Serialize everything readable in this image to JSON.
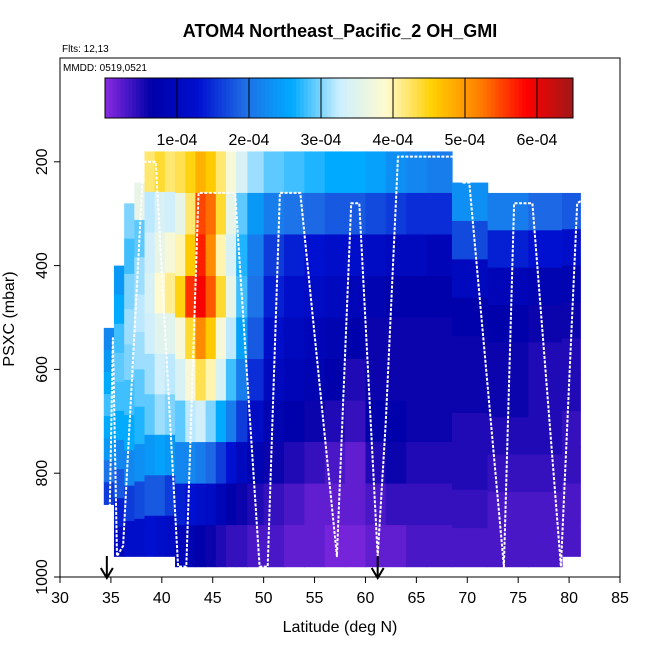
{
  "chart_data": {
    "type": "heatmap",
    "title": "ATOM4 Northeast_Pacific_2 OH_GMI",
    "notes": [
      "Flts: 12,13",
      "MMDD: 0519,0521"
    ],
    "xlabel": "Latitude (deg N)",
    "ylabel": "PSXC (mbar)",
    "xlim": [
      30,
      85
    ],
    "ylim": [
      1000,
      0
    ],
    "x_ticks": [
      30,
      35,
      40,
      45,
      50,
      55,
      60,
      65,
      70,
      75,
      80,
      85
    ],
    "y_ticks": [
      200,
      400,
      600,
      800,
      1000
    ],
    "colorbar": {
      "range": [
        0,
        0.00065
      ],
      "tick_values": [
        0.0001,
        0.0002,
        0.0003,
        0.0004,
        0.0005,
        0.0006
      ],
      "tick_labels": [
        "1e-04",
        "2e-04",
        "3e-04",
        "4e-04",
        "5e-04",
        "6e-04"
      ],
      "colors": [
        "#8a2be2",
        "#0000a8",
        "#0010d0",
        "#1f6fe6",
        "#00aaff",
        "#cceeff",
        "#fffad0",
        "#ffd000",
        "#ff8000",
        "#ff0000",
        "#a01818"
      ]
    },
    "markers": [
      {
        "x": 34.6,
        "y": 1000,
        "shape": "arrow"
      },
      {
        "x": 61.2,
        "y": 1000,
        "shape": "arrow"
      }
    ],
    "columns": [
      {
        "lat": 34.8,
        "top": 520,
        "bottom": 860,
        "values": [
          0.00022,
          0.00024,
          0.00026,
          0.00028,
          0.00026,
          0.00024,
          0.0002,
          0.00016
        ]
      },
      {
        "lat": 35.8,
        "top": 400,
        "bottom": 960,
        "values": [
          0.00024,
          0.00026,
          0.00028,
          0.00029,
          0.00028,
          0.00026,
          0.00022,
          0.00018,
          0.00014,
          0.0001
        ]
      },
      {
        "lat": 36.8,
        "top": 280,
        "bottom": 960,
        "values": [
          0.0003,
          0.00028,
          0.0003,
          0.00031,
          0.0003,
          0.00028,
          0.00026,
          0.00022,
          0.00016,
          0.00012
        ]
      },
      {
        "lat": 37.8,
        "top": 240,
        "bottom": 960,
        "values": [
          0.00036,
          0.00029,
          0.00031,
          0.00032,
          0.00031,
          0.00029,
          0.00027,
          0.00023,
          0.00017,
          0.00012
        ]
      },
      {
        "lat": 38.8,
        "top": 180,
        "bottom": 960,
        "values": [
          0.00042,
          0.00032,
          0.00033,
          0.00034,
          0.00033,
          0.00031,
          0.00029,
          0.00024,
          0.00018,
          0.00013
        ]
      },
      {
        "lat": 39.8,
        "top": 180,
        "bottom": 960,
        "values": [
          0.00044,
          0.00034,
          0.00036,
          0.00039,
          0.00035,
          0.00033,
          0.00031,
          0.00025,
          0.00018,
          0.00012
        ]
      },
      {
        "lat": 40.8,
        "top": 180,
        "bottom": 960,
        "values": [
          0.00042,
          0.00033,
          0.00038,
          0.00041,
          0.00035,
          0.00032,
          0.0003,
          0.00024,
          0.00016,
          0.00011
        ]
      },
      {
        "lat": 41.8,
        "top": 180,
        "bottom": 980,
        "values": [
          0.00043,
          0.00036,
          0.0004,
          0.00045,
          0.00038,
          0.00034,
          0.00029,
          0.00022,
          0.00014,
          9e-05
        ]
      },
      {
        "lat": 42.8,
        "top": 180,
        "bottom": 980,
        "values": [
          0.00045,
          0.00042,
          0.00046,
          0.00056,
          0.00044,
          0.00038,
          0.00032,
          0.00022,
          0.00013,
          8e-05
        ]
      },
      {
        "lat": 43.8,
        "top": 180,
        "bottom": 980,
        "values": [
          0.00048,
          0.00055,
          0.00057,
          0.00059,
          0.00051,
          0.00043,
          0.00033,
          0.00021,
          0.00012,
          7e-05
        ]
      },
      {
        "lat": 44.8,
        "top": 180,
        "bottom": 980,
        "values": [
          0.00046,
          0.00053,
          0.00051,
          0.00054,
          0.00046,
          0.0004,
          0.0003,
          0.00019,
          0.00011,
          6e-05
        ]
      },
      {
        "lat": 45.8,
        "top": 180,
        "bottom": 980,
        "values": [
          0.00042,
          0.00044,
          0.0004,
          0.00044,
          0.00038,
          0.00034,
          0.00026,
          0.00016,
          9e-05,
          5e-05
        ]
      },
      {
        "lat": 46.8,
        "top": 180,
        "bottom": 980,
        "values": [
          0.00038,
          0.00036,
          0.00034,
          0.00036,
          0.00032,
          0.00028,
          0.00021,
          0.00013,
          7e-05,
          4e-05
        ]
      },
      {
        "lat": 47.8,
        "top": 180,
        "bottom": 980,
        "values": [
          0.00034,
          0.00029,
          0.00027,
          0.00028,
          0.00025,
          0.00021,
          0.00016,
          0.0001,
          6e-05,
          4e-05
        ]
      },
      {
        "lat": 49.0,
        "top": 180,
        "bottom": 980,
        "values": [
          0.00031,
          0.00024,
          0.00021,
          0.0002,
          0.00018,
          0.00015,
          0.00011,
          8e-05,
          5e-05,
          3e-05
        ]
      },
      {
        "lat": 51.0,
        "top": 180,
        "bottom": 980,
        "values": [
          0.00029,
          0.00021,
          0.00016,
          0.00014,
          0.00012,
          0.0001,
          8e-05,
          6e-05,
          4e-05,
          3e-05
        ]
      },
      {
        "lat": 53.0,
        "top": 180,
        "bottom": 980,
        "values": [
          0.00028,
          0.0002,
          0.00014,
          0.00012,
          0.0001,
          9e-05,
          7e-05,
          5e-05,
          3e-05,
          2e-05
        ]
      },
      {
        "lat": 55.0,
        "top": 180,
        "bottom": 980,
        "values": [
          0.00027,
          0.00019,
          0.00013,
          0.00011,
          9e-05,
          8e-05,
          6e-05,
          4e-05,
          2e-05,
          2e-05
        ]
      },
      {
        "lat": 57.0,
        "top": 180,
        "bottom": 980,
        "values": [
          0.00026,
          0.00018,
          0.00012,
          0.0001,
          8e-05,
          7e-05,
          5e-05,
          3e-05,
          2e-05,
          1e-05
        ]
      },
      {
        "lat": 59.0,
        "top": 180,
        "bottom": 980,
        "values": [
          0.00026,
          0.00018,
          0.00012,
          9e-05,
          7e-05,
          5e-05,
          4e-05,
          2e-05,
          2e-05,
          1e-05
        ]
      },
      {
        "lat": 61.0,
        "top": 180,
        "bottom": 980,
        "values": [
          0.00025,
          0.00017,
          0.00011,
          8e-05,
          6e-05,
          6e-05,
          7e-05,
          5e-05,
          3e-05,
          2e-05
        ]
      },
      {
        "lat": 63.0,
        "top": 180,
        "bottom": 980,
        "values": [
          0.00023,
          0.00016,
          0.0001,
          7e-05,
          6e-05,
          6e-05,
          7e-05,
          6e-05,
          4e-05,
          2e-05
        ]
      },
      {
        "lat": 65.0,
        "top": 180,
        "bottom": 980,
        "values": [
          0.00022,
          0.00015,
          0.0001,
          7e-05,
          6e-05,
          6e-05,
          6e-05,
          5e-05,
          4e-05,
          3e-05
        ]
      },
      {
        "lat": 67.0,
        "top": 180,
        "bottom": 980,
        "values": [
          0.00021,
          0.00015,
          9e-05,
          7e-05,
          6e-05,
          6e-05,
          6e-05,
          5e-05,
          4e-05,
          3e-05
        ]
      },
      {
        "lat": 70.0,
        "top": 240,
        "bottom": 980,
        "values": [
          0.00023,
          0.00017,
          0.0001,
          7e-05,
          6e-05,
          6e-05,
          5e-05,
          5e-05,
          4e-05,
          3e-05
        ]
      },
      {
        "lat": 74.0,
        "top": 260,
        "bottom": 980,
        "values": [
          0.00021,
          0.00014,
          9e-05,
          7e-05,
          6e-05,
          6e-05,
          5e-05,
          4e-05,
          3e-05,
          3e-05
        ]
      },
      {
        "lat": 78.0,
        "top": 260,
        "bottom": 980,
        "values": [
          0.00019,
          0.00013,
          8e-05,
          6e-05,
          5e-05,
          5e-05,
          5e-05,
          4e-05,
          3e-05,
          3e-05
        ]
      },
      {
        "lat": 80.6,
        "top": 260,
        "bottom": 960,
        "values": [
          0.00018,
          0.00012,
          8e-05,
          6e-05,
          5e-05,
          5e-05,
          4e-05,
          4e-05,
          3e-05,
          3e-05
        ]
      }
    ],
    "flight_track": [
      {
        "x": 34.8,
        "y": 960
      },
      {
        "x": 35.2,
        "y": 540
      },
      {
        "x": 35.6,
        "y": 960
      },
      {
        "x": 36.2,
        "y": 940
      },
      {
        "x": 38.2,
        "y": 200
      },
      {
        "x": 39.4,
        "y": 200
      },
      {
        "x": 41.6,
        "y": 980
      },
      {
        "x": 42.4,
        "y": 980
      },
      {
        "x": 43.6,
        "y": 260
      },
      {
        "x": 47.2,
        "y": 260
      },
      {
        "x": 49.6,
        "y": 980
      },
      {
        "x": 50.4,
        "y": 980
      },
      {
        "x": 51.6,
        "y": 260
      },
      {
        "x": 53.6,
        "y": 260
      },
      {
        "x": 57.2,
        "y": 960
      },
      {
        "x": 58.6,
        "y": 280
      },
      {
        "x": 59.4,
        "y": 280
      },
      {
        "x": 61.2,
        "y": 960
      },
      {
        "x": 62.0,
        "y": 700
      },
      {
        "x": 63.2,
        "y": 190
      },
      {
        "x": 68.8,
        "y": 190
      },
      {
        "x": 69.6,
        "y": 240
      },
      {
        "x": 70.2,
        "y": 240
      },
      {
        "x": 73.6,
        "y": 980
      },
      {
        "x": 74.6,
        "y": 280
      },
      {
        "x": 76.4,
        "y": 280
      },
      {
        "x": 79.2,
        "y": 980
      },
      {
        "x": 80.8,
        "y": 280
      },
      {
        "x": 81.6,
        "y": 270
      }
    ]
  }
}
